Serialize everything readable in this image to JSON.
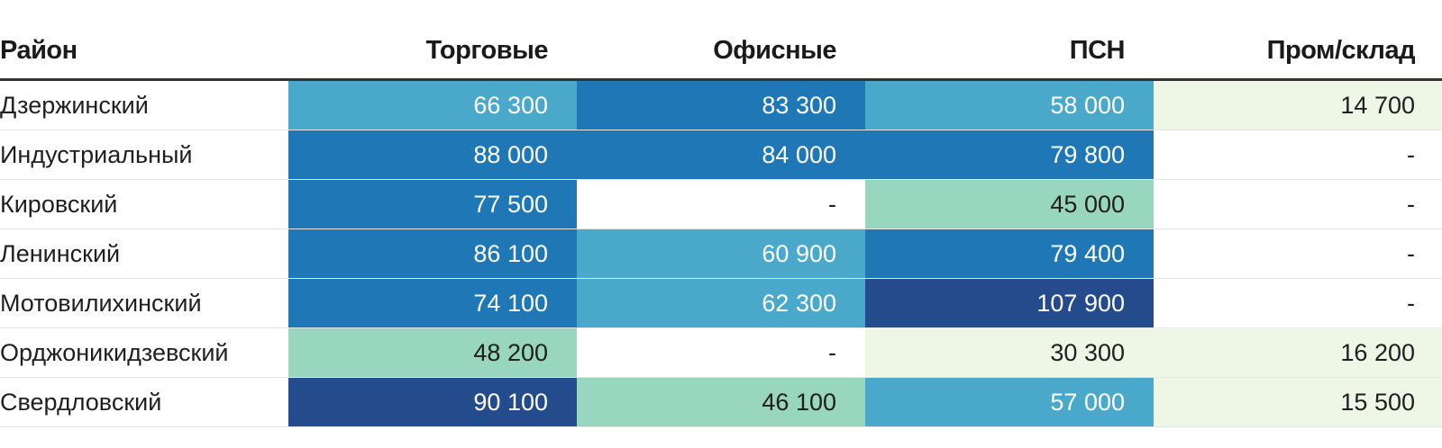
{
  "chart_data": {
    "type": "heatmap",
    "title": "",
    "columns": [
      "Район",
      "Торговые",
      "Офисные",
      "ПСН",
      "Пром/склад"
    ],
    "rows": [
      {
        "district": "Дзержинский",
        "values": [
          66300,
          83300,
          58000,
          14700
        ]
      },
      {
        "district": "Индустриальный",
        "values": [
          88000,
          84000,
          79800,
          null
        ]
      },
      {
        "district": "Кировский",
        "values": [
          77500,
          null,
          45000,
          null
        ]
      },
      {
        "district": "Ленинский",
        "values": [
          86100,
          60900,
          79400,
          null
        ]
      },
      {
        "district": "Мотовилихинский",
        "values": [
          74100,
          62300,
          107900,
          null
        ]
      },
      {
        "district": "Орджоникидзевский",
        "values": [
          48200,
          null,
          30300,
          16200
        ]
      },
      {
        "district": "Свердловский",
        "values": [
          90100,
          46100,
          57000,
          15500
        ]
      }
    ],
    "missing_label": "-",
    "color_scale": [
      {
        "max": 0,
        "color": "#ffffff",
        "text": "light"
      },
      {
        "max": 40000,
        "color": "#eef7e6",
        "text": "light"
      },
      {
        "max": 55000,
        "color": "#99d6c0",
        "text": "light"
      },
      {
        "max": 70000,
        "color": "#4aa8cb",
        "text": "dark"
      },
      {
        "max": 90000,
        "color": "#1f78b5",
        "text": "dark"
      },
      {
        "max": 1000000,
        "color": "#244b8c",
        "text": "dark"
      }
    ]
  }
}
